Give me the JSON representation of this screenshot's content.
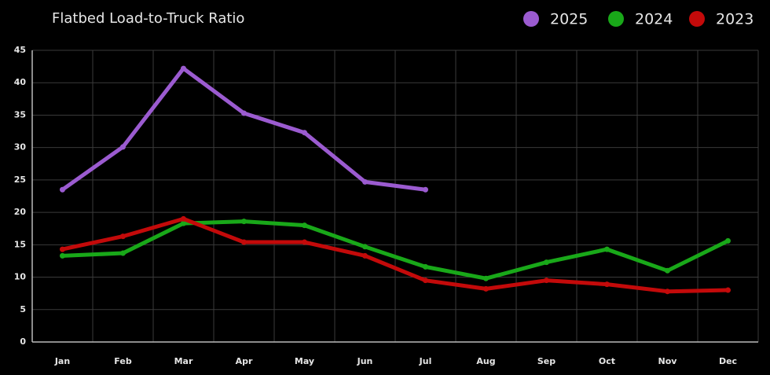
{
  "chart_data": {
    "type": "line",
    "title": "Flatbed Load-to-Truck Ratio",
    "categories": [
      "Jan",
      "Feb",
      "Mar",
      "Apr",
      "May",
      "Jun",
      "Jul",
      "Aug",
      "Sep",
      "Oct",
      "Nov",
      "Dec"
    ],
    "series": [
      {
        "name": "2025",
        "color": "#9b5bd0",
        "values": [
          23.5,
          30.1,
          42.2,
          35.3,
          32.3,
          24.7,
          23.5,
          null,
          null,
          null,
          null,
          null
        ]
      },
      {
        "name": "2024",
        "color": "#19a819",
        "values": [
          13.3,
          13.7,
          18.3,
          18.6,
          18.0,
          14.7,
          11.6,
          9.8,
          12.3,
          14.3,
          11.0,
          15.6
        ]
      },
      {
        "name": "2023",
        "color": "#c30a0a",
        "values": [
          14.3,
          16.3,
          19.0,
          15.4,
          15.4,
          13.3,
          9.5,
          8.2,
          9.5,
          8.9,
          7.8,
          8.0
        ]
      }
    ],
    "ylim": [
      0,
      45
    ],
    "yticks": [
      0,
      5,
      10,
      15,
      20,
      25,
      30,
      35,
      40,
      45
    ],
    "grid": true,
    "legend": "top-right"
  }
}
